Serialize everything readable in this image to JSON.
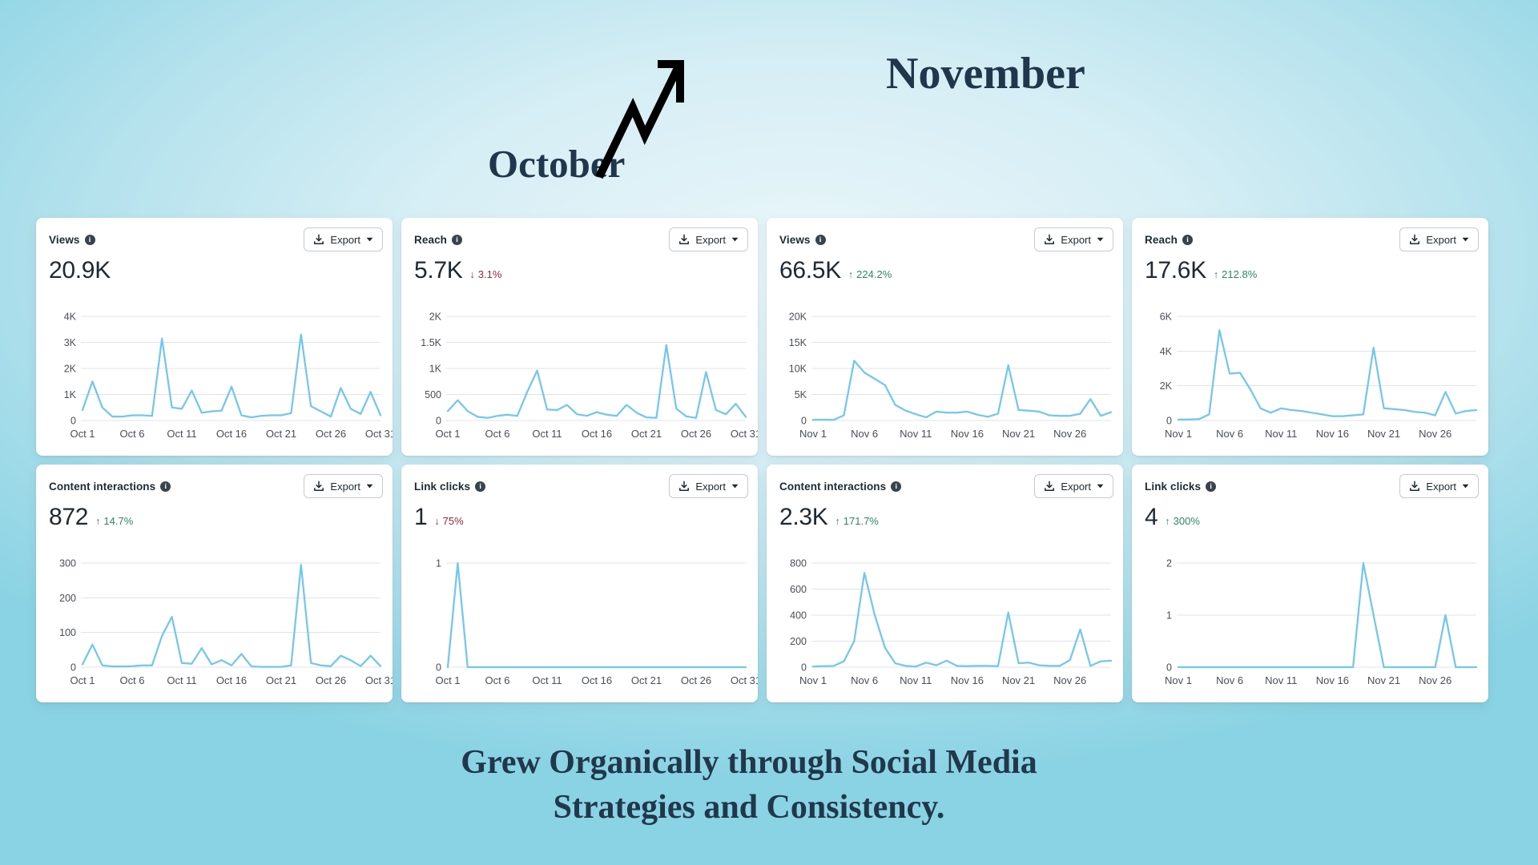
{
  "page": {
    "header": {
      "october_label": "October",
      "november_label": "November"
    },
    "footer": {
      "line1": "Grew Organically through Social Media",
      "line2": "Strategies and Consistency."
    }
  },
  "card_ui": {
    "export_label": "Export",
    "info_glyph": "i",
    "up_glyph": "↑",
    "down_glyph": "↓"
  },
  "theme": {
    "background_center": "#e9f6fa",
    "background_edge": "#8ad3e4",
    "card_background": "#ffffff",
    "line_color": "#72c7ee",
    "grid_color": "#e0e3e7",
    "axis_text_color": "#474f57",
    "title_text_color": "#1c2b33",
    "value_text_color": "#1d2a33",
    "positive_color": "#2d8a63",
    "negative_color": "#a32639",
    "heading_text_color": "#20364a",
    "arrow_color": "#000000"
  },
  "axes": {
    "october": [
      {
        "label": "Oct 1",
        "day": 1
      },
      {
        "label": "Oct 6",
        "day": 6
      },
      {
        "label": "Oct 11",
        "day": 11
      },
      {
        "label": "Oct 16",
        "day": 16
      },
      {
        "label": "Oct 21",
        "day": 21
      },
      {
        "label": "Oct 26",
        "day": 26
      },
      {
        "label": "Oct 31",
        "day": 31
      }
    ],
    "november": [
      {
        "label": "Nov 1",
        "day": 1
      },
      {
        "label": "Nov 6",
        "day": 6
      },
      {
        "label": "Nov 11",
        "day": 11
      },
      {
        "label": "Nov 16",
        "day": 16
      },
      {
        "label": "Nov 21",
        "day": 21
      },
      {
        "label": "Nov 26",
        "day": 26
      }
    ]
  },
  "chart_data": [
    {
      "id": "views-october",
      "type": "line",
      "title": "Views",
      "period": "October",
      "headline_value": "20.9K",
      "delta": null,
      "x_axis": "october",
      "ylim": [
        0,
        4000
      ],
      "y_ticks": [
        {
          "label": "4K",
          "value": 4000
        },
        {
          "label": "3K",
          "value": 3000
        },
        {
          "label": "2K",
          "value": 2000
        },
        {
          "label": "1K",
          "value": 1000
        },
        {
          "label": "0",
          "value": 0
        }
      ],
      "values": [
        400,
        1500,
        500,
        150,
        150,
        200,
        200,
        180,
        3150,
        500,
        450,
        1150,
        300,
        350,
        380,
        1300,
        200,
        120,
        180,
        200,
        200,
        280,
        3300,
        550,
        350,
        150,
        1250,
        450,
        250,
        1100,
        200
      ]
    },
    {
      "id": "reach-october",
      "type": "line",
      "title": "Reach",
      "period": "October",
      "headline_value": "5.7K",
      "delta": {
        "direction": "down",
        "glyph": "↓",
        "text": "3.1%"
      },
      "x_axis": "october",
      "ylim": [
        0,
        2000
      ],
      "y_ticks": [
        {
          "label": "2K",
          "value": 2000
        },
        {
          "label": "1.5K",
          "value": 1500
        },
        {
          "label": "1K",
          "value": 1000
        },
        {
          "label": "500",
          "value": 500
        },
        {
          "label": "0",
          "value": 0
        }
      ],
      "values": [
        180,
        390,
        180,
        70,
        50,
        90,
        110,
        90,
        550,
        960,
        210,
        200,
        300,
        120,
        90,
        160,
        110,
        90,
        300,
        150,
        60,
        50,
        1450,
        230,
        80,
        50,
        930,
        200,
        120,
        320,
        70
      ]
    },
    {
      "id": "views-november",
      "type": "line",
      "title": "Views",
      "period": "November",
      "headline_value": "66.5K",
      "delta": {
        "direction": "up",
        "glyph": "↑",
        "text": "224.2%"
      },
      "x_axis": "november",
      "ylim": [
        0,
        20000
      ],
      "y_ticks": [
        {
          "label": "20K",
          "value": 20000
        },
        {
          "label": "15K",
          "value": 15000
        },
        {
          "label": "10K",
          "value": 10000
        },
        {
          "label": "5K",
          "value": 5000
        },
        {
          "label": "0",
          "value": 0
        }
      ],
      "values": [
        100,
        150,
        100,
        1000,
        11500,
        9200,
        8000,
        6800,
        3000,
        1900,
        1200,
        600,
        1700,
        1500,
        1500,
        1700,
        1100,
        700,
        1300,
        10600,
        2000,
        1900,
        1700,
        1000,
        900,
        900,
        1300,
        4100,
        900,
        1600
      ]
    },
    {
      "id": "reach-november",
      "type": "line",
      "title": "Reach",
      "period": "November",
      "headline_value": "17.6K",
      "delta": {
        "direction": "up",
        "glyph": "↑",
        "text": "212.8%"
      },
      "x_axis": "november",
      "ylim": [
        0,
        6000
      ],
      "y_ticks": [
        {
          "label": "6K",
          "value": 6000
        },
        {
          "label": "4K",
          "value": 4000
        },
        {
          "label": "2K",
          "value": 2000
        },
        {
          "label": "0",
          "value": 0
        }
      ],
      "values": [
        50,
        60,
        80,
        350,
        5200,
        2700,
        2750,
        1800,
        700,
        450,
        700,
        600,
        550,
        450,
        350,
        250,
        250,
        300,
        350,
        4200,
        700,
        650,
        600,
        500,
        450,
        300,
        1650,
        400,
        550,
        600
      ]
    },
    {
      "id": "content-interactions-october",
      "type": "line",
      "title": "Content interactions",
      "period": "October",
      "headline_value": "872",
      "delta": {
        "direction": "up",
        "glyph": "↑",
        "text": "14.7%"
      },
      "x_axis": "october",
      "ylim": [
        0,
        300
      ],
      "y_ticks": [
        {
          "label": "300",
          "value": 300
        },
        {
          "label": "200",
          "value": 200
        },
        {
          "label": "100",
          "value": 100
        },
        {
          "label": "0",
          "value": 0
        }
      ],
      "values": [
        8,
        65,
        5,
        2,
        2,
        3,
        5,
        5,
        90,
        145,
        12,
        10,
        55,
        8,
        20,
        5,
        38,
        2,
        1,
        1,
        1,
        5,
        295,
        12,
        5,
        3,
        33,
        20,
        3,
        33,
        3
      ]
    },
    {
      "id": "link-clicks-october",
      "type": "line",
      "title": "Link clicks",
      "period": "October",
      "headline_value": "1",
      "delta": {
        "direction": "down",
        "glyph": "↓",
        "text": "75%"
      },
      "x_axis": "october",
      "ylim": [
        0,
        1
      ],
      "y_ticks": [
        {
          "label": "1",
          "value": 1
        },
        {
          "label": "0",
          "value": 0
        }
      ],
      "values": [
        0,
        1,
        0,
        0,
        0,
        0,
        0,
        0,
        0,
        0,
        0,
        0,
        0,
        0,
        0,
        0,
        0,
        0,
        0,
        0,
        0,
        0,
        0,
        0,
        0,
        0,
        0,
        0,
        0,
        0,
        0
      ]
    },
    {
      "id": "content-interactions-november",
      "type": "line",
      "title": "Content interactions",
      "period": "November",
      "headline_value": "2.3K",
      "delta": {
        "direction": "up",
        "glyph": "↑",
        "text": "171.7%"
      },
      "x_axis": "november",
      "ylim": [
        0,
        800
      ],
      "y_ticks": [
        {
          "label": "800",
          "value": 800
        },
        {
          "label": "600",
          "value": 600
        },
        {
          "label": "400",
          "value": 400
        },
        {
          "label": "200",
          "value": 200
        },
        {
          "label": "0",
          "value": 0
        }
      ],
      "values": [
        5,
        8,
        10,
        45,
        200,
        725,
        400,
        150,
        30,
        10,
        5,
        35,
        15,
        50,
        10,
        8,
        10,
        10,
        8,
        420,
        30,
        35,
        15,
        10,
        10,
        55,
        290,
        10,
        45,
        50
      ]
    },
    {
      "id": "link-clicks-november",
      "type": "line",
      "title": "Link clicks",
      "period": "November",
      "headline_value": "4",
      "delta": {
        "direction": "up",
        "glyph": "↑",
        "text": "300%"
      },
      "x_axis": "november",
      "ylim": [
        0,
        2
      ],
      "y_ticks": [
        {
          "label": "2",
          "value": 2
        },
        {
          "label": "1",
          "value": 1
        },
        {
          "label": "0",
          "value": 0
        }
      ],
      "values": [
        0,
        0,
        0,
        0,
        0,
        0,
        0,
        0,
        0,
        0,
        0,
        0,
        0,
        0,
        0,
        0,
        0,
        0,
        2,
        1,
        0,
        0,
        0,
        0,
        0,
        0,
        1,
        0,
        0,
        0
      ]
    }
  ]
}
